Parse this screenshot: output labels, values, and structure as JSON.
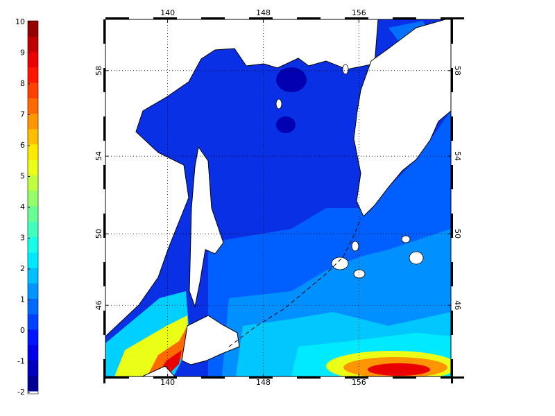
{
  "colorbar": {
    "clim": [
      -2,
      10
    ],
    "ticks": [
      -2,
      -1,
      0,
      1,
      2,
      3,
      4,
      5,
      6,
      7,
      8,
      9,
      10
    ],
    "colors": [
      "#000095",
      "#0000bf",
      "#0000ea",
      "#0015ff",
      "#0040ff",
      "#006aff",
      "#0095ff",
      "#00bfff",
      "#00eaff",
      "#15ffea",
      "#40ffbf",
      "#6aff95",
      "#95ff6a",
      "#bfff40",
      "#eaff15",
      "#ffea00",
      "#ffbf00",
      "#ff9500",
      "#ff6a00",
      "#ff4000",
      "#ff1500",
      "#ea0000",
      "#bf0000",
      "#950000"
    ]
  },
  "map": {
    "xlim": [
      134.8,
      163.7
    ],
    "ylim": [
      41.7,
      60.2
    ],
    "xticks": [
      140,
      148,
      156
    ],
    "yticks": [
      46,
      50,
      54,
      58
    ],
    "grid": true
  }
}
